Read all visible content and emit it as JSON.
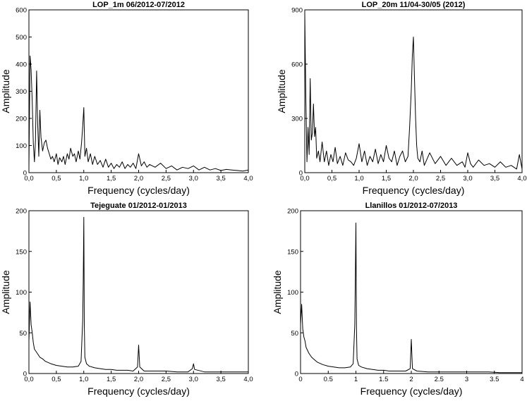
{
  "chart_data": [
    {
      "type": "line",
      "title": "LOP_1m   06/2012-07/2012",
      "xlabel": "Frequency (cycles/day)",
      "ylabel": "Amplitude",
      "xlim": [
        0,
        4
      ],
      "ylim": [
        0,
        600
      ],
      "xticks": [
        "0,0",
        "0,5",
        "1,0",
        "1,5",
        "2,0",
        "2,5",
        "3,0",
        "3,5",
        "4,0"
      ],
      "yticks": [
        "0",
        "100",
        "200",
        "300",
        "400",
        "500",
        "600"
      ],
      "grid": false,
      "series": [
        {
          "x": [
            0,
            0.02,
            0.04,
            0.06,
            0.08,
            0.1,
            0.12,
            0.14,
            0.16,
            0.18,
            0.2,
            0.22,
            0.25,
            0.28,
            0.31,
            0.34,
            0.37,
            0.4,
            0.43,
            0.46,
            0.5,
            0.53,
            0.56,
            0.6,
            0.63,
            0.66,
            0.7,
            0.73,
            0.76,
            0.8,
            0.83,
            0.86,
            0.9,
            0.93,
            0.96,
            0.98,
            1.0,
            1.02,
            1.05,
            1.08,
            1.12,
            1.16,
            1.2,
            1.25,
            1.3,
            1.35,
            1.4,
            1.45,
            1.5,
            1.55,
            1.6,
            1.65,
            1.7,
            1.75,
            1.8,
            1.85,
            1.9,
            1.95,
            2.0,
            2.05,
            2.1,
            2.15,
            2.2,
            2.3,
            2.4,
            2.5,
            2.6,
            2.7,
            2.8,
            2.9,
            3.0,
            3.1,
            3.2,
            3.3,
            3.4,
            3.5,
            3.6,
            3.7,
            3.8,
            3.9,
            4.0
          ],
          "y": [
            20,
            430,
            380,
            260,
            110,
            40,
            120,
            375,
            180,
            60,
            230,
            130,
            80,
            110,
            120,
            90,
            70,
            50,
            60,
            40,
            70,
            30,
            55,
            40,
            60,
            30,
            70,
            50,
            90,
            60,
            70,
            40,
            80,
            50,
            110,
            170,
            240,
            60,
            90,
            40,
            70,
            30,
            60,
            30,
            45,
            20,
            50,
            20,
            35,
            15,
            30,
            20,
            40,
            15,
            30,
            20,
            35,
            15,
            70,
            25,
            40,
            20,
            30,
            20,
            35,
            15,
            25,
            10,
            20,
            15,
            25,
            10,
            20,
            10,
            15,
            8,
            12,
            10,
            8,
            6,
            10
          ]
        }
      ]
    },
    {
      "type": "line",
      "title": "LOP_20m  11/04-30/05 (2012)",
      "xlabel": "Frequency (cycles/day)",
      "ylabel": "Amplitude",
      "xlim": [
        0,
        4
      ],
      "ylim": [
        0,
        900
      ],
      "xticks": [
        "0,0",
        "0,5",
        "1,0",
        "1,5",
        "2,0",
        "2,5",
        "3,0",
        "3,5",
        "4,0"
      ],
      "yticks": [
        "0",
        "300",
        "600",
        "900"
      ],
      "grid": false,
      "series": [
        {
          "x": [
            0,
            0.02,
            0.04,
            0.06,
            0.08,
            0.1,
            0.12,
            0.14,
            0.16,
            0.18,
            0.2,
            0.22,
            0.25,
            0.28,
            0.32,
            0.36,
            0.4,
            0.44,
            0.48,
            0.52,
            0.56,
            0.6,
            0.65,
            0.7,
            0.75,
            0.8,
            0.85,
            0.9,
            0.95,
            1.0,
            1.05,
            1.1,
            1.15,
            1.2,
            1.25,
            1.3,
            1.35,
            1.4,
            1.45,
            1.5,
            1.55,
            1.6,
            1.65,
            1.7,
            1.75,
            1.8,
            1.85,
            1.9,
            1.93,
            1.96,
            1.98,
            2.0,
            2.02,
            2.04,
            2.06,
            2.08,
            2.12,
            2.16,
            2.2,
            2.3,
            2.4,
            2.5,
            2.6,
            2.7,
            2.8,
            2.9,
            2.95,
            3.0,
            3.05,
            3.1,
            3.2,
            3.3,
            3.4,
            3.5,
            3.6,
            3.7,
            3.8,
            3.9,
            3.95,
            4.0
          ],
          "y": [
            880,
            420,
            60,
            250,
            100,
            520,
            180,
            220,
            380,
            200,
            250,
            80,
            120,
            60,
            170,
            60,
            120,
            40,
            100,
            60,
            140,
            50,
            90,
            40,
            110,
            70,
            60,
            40,
            80,
            160,
            60,
            120,
            40,
            90,
            60,
            130,
            50,
            100,
            60,
            150,
            80,
            60,
            120,
            40,
            90,
            120,
            60,
            90,
            250,
            450,
            650,
            750,
            520,
            300,
            150,
            80,
            60,
            120,
            40,
            110,
            50,
            90,
            40,
            80,
            40,
            60,
            30,
            110,
            50,
            30,
            70,
            40,
            50,
            30,
            60,
            30,
            40,
            20,
            100,
            20
          ]
        }
      ]
    },
    {
      "type": "line",
      "title": "Tejeguate 01/2012-01/2013",
      "xlabel": "Frequency (cycles/day)",
      "ylabel": "Amplitude",
      "xlim": [
        0,
        4
      ],
      "ylim": [
        0,
        200
      ],
      "xticks": [
        "0,0",
        "0,5",
        "1,0",
        "1,5",
        "2,0",
        "2,5",
        "3,0",
        "3,5",
        "4,0"
      ],
      "yticks": [
        "0",
        "50",
        "100",
        "150",
        "200"
      ],
      "grid": false,
      "series": [
        {
          "x": [
            0,
            0.02,
            0.04,
            0.06,
            0.08,
            0.1,
            0.15,
            0.2,
            0.25,
            0.3,
            0.4,
            0.5,
            0.6,
            0.7,
            0.8,
            0.9,
            0.95,
            0.98,
            0.99,
            1.0,
            1.01,
            1.02,
            1.05,
            1.1,
            1.2,
            1.3,
            1.4,
            1.5,
            1.6,
            1.7,
            1.8,
            1.9,
            1.98,
            2.0,
            2.02,
            2.1,
            2.3,
            2.5,
            2.7,
            2.9,
            2.98,
            3.0,
            3.02,
            3.2,
            3.4,
            3.6,
            3.8,
            4.0
          ],
          "y": [
            40,
            88,
            60,
            50,
            38,
            30,
            25,
            20,
            18,
            15,
            12,
            10,
            9,
            8,
            8,
            9,
            15,
            65,
            115,
            192,
            60,
            20,
            12,
            9,
            7,
            6,
            5,
            5,
            4,
            4,
            4,
            3,
            8,
            35,
            8,
            3,
            3,
            3,
            2,
            2,
            6,
            12,
            5,
            2,
            2,
            2,
            2,
            2
          ]
        }
      ]
    },
    {
      "type": "line",
      "title": "Llanillos 01/2012-07/2013",
      "xlabel": "Frequency (cycles/day)",
      "ylabel": "Amplitude",
      "xlim": [
        0,
        4
      ],
      "ylim": [
        0,
        200
      ],
      "xticks": [
        "0",
        "0.5",
        "1",
        "1.5",
        "2",
        "2.5",
        "3",
        "3.5",
        "4"
      ],
      "yticks": [
        "0",
        "50",
        "100",
        "150",
        "200"
      ],
      "grid": false,
      "series": [
        {
          "x": [
            0,
            0.02,
            0.04,
            0.06,
            0.08,
            0.1,
            0.15,
            0.2,
            0.25,
            0.3,
            0.4,
            0.5,
            0.6,
            0.7,
            0.8,
            0.9,
            0.95,
            0.98,
            0.99,
            1.0,
            1.01,
            1.02,
            1.05,
            1.1,
            1.2,
            1.3,
            1.4,
            1.5,
            1.6,
            1.7,
            1.8,
            1.9,
            1.98,
            2.0,
            2.02,
            2.1,
            2.3,
            2.5,
            2.7,
            2.9,
            3.0,
            3.2,
            3.4,
            3.6,
            3.8,
            4.0
          ],
          "y": [
            60,
            85,
            55,
            45,
            40,
            32,
            25,
            20,
            17,
            14,
            11,
            9,
            8,
            7,
            7,
            8,
            12,
            60,
            120,
            185,
            55,
            18,
            10,
            8,
            6,
            5,
            4,
            4,
            3,
            3,
            3,
            3,
            6,
            42,
            6,
            3,
            2,
            2,
            2,
            2,
            2,
            2,
            2,
            1,
            1,
            1
          ]
        }
      ]
    }
  ]
}
